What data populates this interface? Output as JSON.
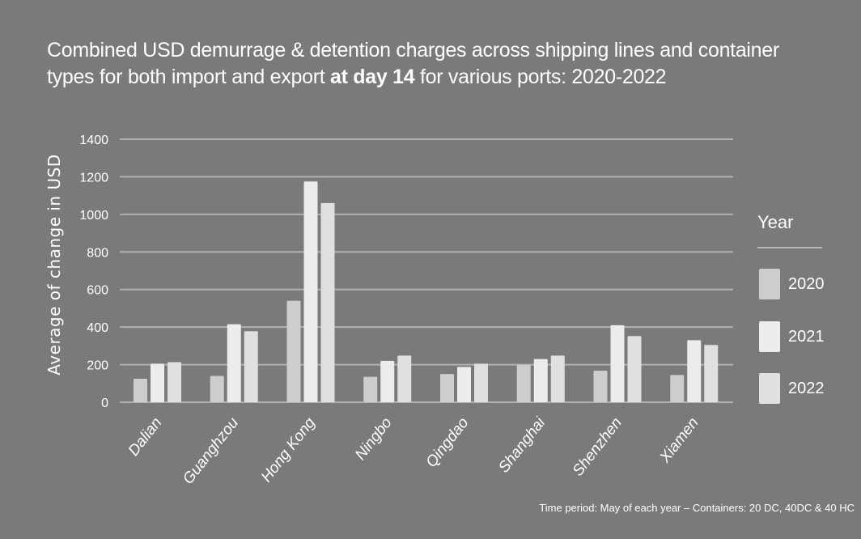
{
  "title_part1": "Combined USD demurrage & detention charges across shipping lines and container types for both import and export ",
  "title_bold": "at day 14",
  "title_part2": " for various ports: 2020-2022",
  "footnote": "Time period: May of each year – Containers: 20 DC, 40DC & 40 HC",
  "legend": {
    "title": "Year",
    "items": [
      {
        "label": "2020",
        "color": "#cdcdcd"
      },
      {
        "label": "2021",
        "color": "#ececec"
      },
      {
        "label": "2022",
        "color": "#e0e0e0"
      }
    ]
  },
  "chart_data": {
    "type": "bar",
    "title": "Combined USD demurrage & detention charges across shipping lines and container types for both import and export at day 14 for various ports: 2020-2022",
    "xlabel": "",
    "ylabel": "Average of change in USD",
    "ylim": [
      0,
      1400
    ],
    "yticks": [
      0,
      200,
      400,
      600,
      800,
      1000,
      1200,
      1400
    ],
    "grid": true,
    "legend_position": "right",
    "categories": [
      "Dalian",
      "Guanghzou",
      "Hong Kong",
      "Ningbo",
      "Qingdao",
      "Shanghai",
      "Shenzhen",
      "Xiamen"
    ],
    "series": [
      {
        "name": "2020",
        "color": "#cdcdcd",
        "values": [
          125,
          140,
          540,
          135,
          150,
          200,
          168,
          145
        ]
      },
      {
        "name": "2021",
        "color": "#ececec",
        "values": [
          205,
          415,
          1175,
          220,
          188,
          230,
          410,
          330
        ]
      },
      {
        "name": "2022",
        "color": "#e0e0e0",
        "values": [
          213,
          378,
          1060,
          248,
          205,
          248,
          352,
          305
        ]
      }
    ]
  }
}
